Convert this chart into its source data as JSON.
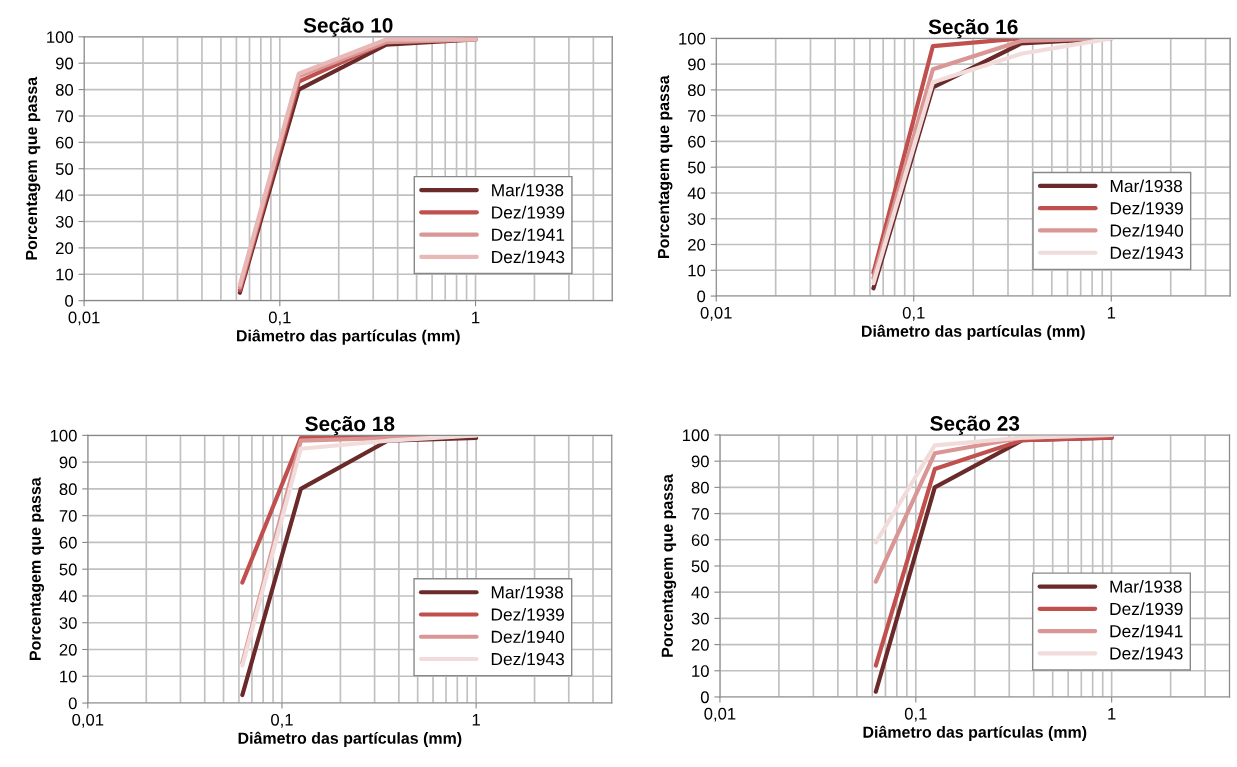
{
  "chart_data": [
    {
      "type": "line",
      "title": "Seção 10",
      "xlabel": "Diâmetro das partículas (mm)",
      "ylabel": "Porcentagem que passa",
      "x": [
        0.0625,
        0.125,
        0.35,
        1
      ],
      "log": "x",
      "grid": true,
      "legend": "bottom right",
      "xlim": [
        0.01,
        5
      ],
      "xticks": [
        {
          "value": 0.01,
          "label": "0,01"
        },
        {
          "value": 0.1,
          "label": "0,1"
        },
        {
          "value": 1,
          "label": "1"
        }
      ],
      "ylim": [
        0,
        100
      ],
      "yticks": [
        0,
        10,
        20,
        30,
        40,
        50,
        60,
        70,
        80,
        90,
        100
      ],
      "series": [
        {
          "name": "Mar/1938",
          "color": "#6b2a2a",
          "values": [
            3,
            80,
            97,
            99
          ]
        },
        {
          "name": "Dez/1939",
          "color": "#c0504d",
          "values": [
            4,
            83,
            98,
            99
          ]
        },
        {
          "name": "Dez/1941",
          "color": "#d99694",
          "values": [
            5,
            85,
            98,
            99
          ]
        },
        {
          "name": "Dez/1943",
          "color": "#e8b8b7",
          "values": [
            6,
            86,
            99,
            99
          ]
        }
      ]
    },
    {
      "type": "line",
      "title": "Seção 16",
      "xlabel": "Diâmetro das partículas (mm)",
      "ylabel": "Porcentagem que passa",
      "x": [
        0.0625,
        0.125,
        0.35,
        1
      ],
      "log": "x",
      "grid": true,
      "legend": "bottom right",
      "xlim": [
        0.01,
        4
      ],
      "xticks": [
        {
          "value": 0.01,
          "label": "0,01"
        },
        {
          "value": 0.1,
          "label": "0,1"
        },
        {
          "value": 1,
          "label": "1"
        }
      ],
      "ylim": [
        0,
        100
      ],
      "yticks": [
        0,
        10,
        20,
        30,
        40,
        50,
        60,
        70,
        80,
        90,
        100
      ],
      "series": [
        {
          "name": "Mar/1938",
          "color": "#6b2a2a",
          "values": [
            3,
            81,
            98,
            100
          ]
        },
        {
          "name": "Dez/1939",
          "color": "#c0504d",
          "values": [
            9,
            97,
            100,
            100
          ]
        },
        {
          "name": "Dez/1940",
          "color": "#d99694",
          "values": [
            7,
            88,
            99,
            100
          ]
        },
        {
          "name": "Dez/1943",
          "color": "#f2dcdb",
          "values": [
            5,
            83,
            94,
            100
          ]
        }
      ]
    },
    {
      "type": "line",
      "title": "Seção 18",
      "xlabel": "Diâmetro das partículas (mm)",
      "ylabel": "Porcentagem que passa",
      "x": [
        0.0625,
        0.125,
        0.35,
        1
      ],
      "log": "x",
      "grid": true,
      "legend": "bottom right",
      "xlim": [
        0.01,
        5
      ],
      "xticks": [
        {
          "value": 0.01,
          "label": "0,01"
        },
        {
          "value": 0.1,
          "label": "0,1"
        },
        {
          "value": 1,
          "label": "1"
        }
      ],
      "ylim": [
        0,
        100
      ],
      "yticks": [
        0,
        10,
        20,
        30,
        40,
        50,
        60,
        70,
        80,
        90,
        100
      ],
      "series": [
        {
          "name": "Mar/1938",
          "color": "#6b2a2a",
          "values": [
            3,
            80,
            98,
            99
          ]
        },
        {
          "name": "Dez/1939",
          "color": "#c0504d",
          "values": [
            45,
            99,
            100,
            100
          ]
        },
        {
          "name": "Dez/1940",
          "color": "#d99694",
          "values": [
            15,
            98,
            99,
            100
          ]
        },
        {
          "name": "Dez/1943",
          "color": "#f2dcdb",
          "values": [
            14,
            95,
            98,
            100
          ]
        }
      ]
    },
    {
      "type": "line",
      "title": "Seção 23",
      "xlabel": "Diâmetro das partículas (mm)",
      "ylabel": "Porcentagem que passa",
      "x": [
        0.0625,
        0.125,
        0.35,
        1
      ],
      "log": "x",
      "grid": true,
      "legend": "bottom right",
      "xlim": [
        0.01,
        4
      ],
      "xticks": [
        {
          "value": 0.01,
          "label": "0,01"
        },
        {
          "value": 0.1,
          "label": "0,1"
        },
        {
          "value": 1,
          "label": "1"
        }
      ],
      "ylim": [
        0,
        100
      ],
      "yticks": [
        0,
        10,
        20,
        30,
        40,
        50,
        60,
        70,
        80,
        90,
        100
      ],
      "series": [
        {
          "name": "Mar/1938",
          "color": "#6b2a2a",
          "values": [
            2,
            80,
            98,
            99
          ]
        },
        {
          "name": "Dez/1939",
          "color": "#c0504d",
          "values": [
            12,
            87,
            98,
            99
          ]
        },
        {
          "name": "Dez/1941",
          "color": "#d99694",
          "values": [
            44,
            93,
            99,
            100
          ]
        },
        {
          "name": "Dez/1943",
          "color": "#f2dcdb",
          "values": [
            59,
            96,
            99,
            100
          ]
        }
      ]
    }
  ]
}
